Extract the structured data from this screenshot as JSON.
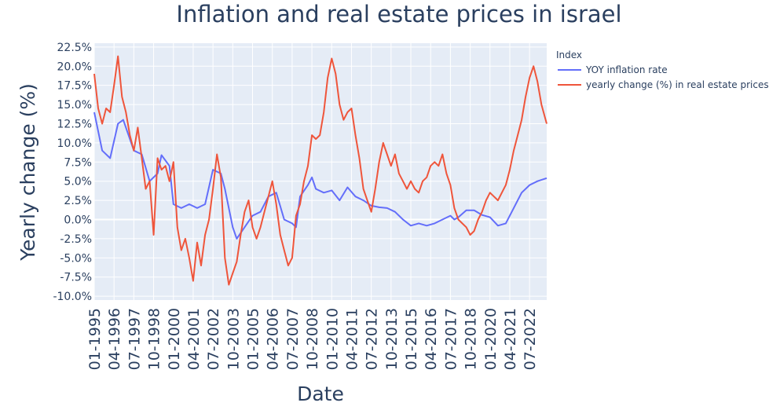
{
  "chart_data": {
    "type": "line",
    "title": "Inflation and real estate prices in israel",
    "xlabel": "Date",
    "ylabel": "Yearly change (%)",
    "ylim": [
      -10.5,
      23.0
    ],
    "y_ticks": [
      -10,
      -7.5,
      -5,
      -2.5,
      0,
      2.5,
      5,
      7.5,
      10,
      12.5,
      15,
      17.5,
      20,
      22.5
    ],
    "y_tick_labels": [
      "-10.0%",
      "-7.5%",
      "-5.0%",
      "-2.5%",
      "0.0%",
      "2.5%",
      "5.0%",
      "7.5%",
      "10.0%",
      "12.5%",
      "15.0%",
      "17.5%",
      "20.0%",
      "22.5%"
    ],
    "x_ticks": [
      "01-1995",
      "04-1996",
      "07-1997",
      "10-1998",
      "01-2000",
      "04-2001",
      "07-2002",
      "10-2003",
      "01-2005",
      "04-2006",
      "07-2007",
      "10-2008",
      "01-2010",
      "04-2011",
      "07-2012",
      "10-2013",
      "01-2015",
      "04-2016",
      "07-2017",
      "10-2018",
      "01-2020",
      "04-2021",
      "07-2022"
    ],
    "x_range": [
      "01-1995",
      "08-2023"
    ],
    "grid": true,
    "legend": {
      "title": "Index",
      "placement": "top-right outside"
    },
    "series": [
      {
        "name": "YOY inflation rate",
        "color": "#636efa",
        "points": [
          [
            "01-1995",
            14.0
          ],
          [
            "07-1995",
            9.0
          ],
          [
            "01-1996",
            8.0
          ],
          [
            "07-1996",
            12.5
          ],
          [
            "11-1996",
            13.0
          ],
          [
            "07-1997",
            9.0
          ],
          [
            "01-1998",
            8.5
          ],
          [
            "07-1998",
            5.0
          ],
          [
            "01-1999",
            6.0
          ],
          [
            "04-1999",
            8.4
          ],
          [
            "10-1999",
            7.0
          ],
          [
            "01-2000",
            2.0
          ],
          [
            "07-2000",
            1.5
          ],
          [
            "01-2001",
            2.0
          ],
          [
            "07-2001",
            1.5
          ],
          [
            "01-2002",
            2.0
          ],
          [
            "07-2002",
            6.5
          ],
          [
            "01-2003",
            6.0
          ],
          [
            "04-2003",
            4.0
          ],
          [
            "10-2003",
            -1.0
          ],
          [
            "01-2004",
            -2.5
          ],
          [
            "07-2004",
            -1.0
          ],
          [
            "01-2005",
            0.5
          ],
          [
            "07-2005",
            1.0
          ],
          [
            "01-2006",
            3.0
          ],
          [
            "07-2006",
            3.5
          ],
          [
            "01-2007",
            0.0
          ],
          [
            "07-2007",
            -0.5
          ],
          [
            "10-2007",
            -1.0
          ],
          [
            "01-2008",
            3.0
          ],
          [
            "07-2008",
            4.5
          ],
          [
            "10-2008",
            5.5
          ],
          [
            "01-2009",
            4.0
          ],
          [
            "07-2009",
            3.5
          ],
          [
            "01-2010",
            3.8
          ],
          [
            "07-2010",
            2.5
          ],
          [
            "01-2011",
            4.2
          ],
          [
            "07-2011",
            3.0
          ],
          [
            "01-2012",
            2.5
          ],
          [
            "07-2012",
            1.8
          ],
          [
            "01-2013",
            1.6
          ],
          [
            "07-2013",
            1.5
          ],
          [
            "01-2014",
            1.0
          ],
          [
            "07-2014",
            0.0
          ],
          [
            "01-2015",
            -0.8
          ],
          [
            "07-2015",
            -0.5
          ],
          [
            "01-2016",
            -0.8
          ],
          [
            "07-2016",
            -0.5
          ],
          [
            "01-2017",
            0.0
          ],
          [
            "07-2017",
            0.5
          ],
          [
            "10-2017",
            0.0
          ],
          [
            "01-2018",
            0.3
          ],
          [
            "07-2018",
            1.2
          ],
          [
            "01-2019",
            1.2
          ],
          [
            "07-2019",
            0.6
          ],
          [
            "01-2020",
            0.3
          ],
          [
            "07-2020",
            -0.8
          ],
          [
            "01-2021",
            -0.5
          ],
          [
            "07-2021",
            1.5
          ],
          [
            "01-2022",
            3.5
          ],
          [
            "07-2022",
            4.5
          ],
          [
            "01-2023",
            5.0
          ],
          [
            "08-2023",
            5.4
          ]
        ]
      },
      {
        "name": "yearly change (%) in real estate prices",
        "color": "#ef553b",
        "points": [
          [
            "01-1995",
            19.0
          ],
          [
            "04-1995",
            14.5
          ],
          [
            "07-1995",
            12.5
          ],
          [
            "10-1995",
            14.5
          ],
          [
            "01-1996",
            14.0
          ],
          [
            "04-1996",
            17.5
          ],
          [
            "07-1996",
            21.3
          ],
          [
            "10-1996",
            16.0
          ],
          [
            "01-1997",
            14.0
          ],
          [
            "04-1997",
            11.0
          ],
          [
            "07-1997",
            9.0
          ],
          [
            "10-1997",
            12.0
          ],
          [
            "01-1998",
            8.0
          ],
          [
            "04-1998",
            4.0
          ],
          [
            "07-1998",
            5.0
          ],
          [
            "10-1998",
            -2.0
          ],
          [
            "01-1999",
            8.0
          ],
          [
            "04-1999",
            6.5
          ],
          [
            "07-1999",
            7.0
          ],
          [
            "10-1999",
            5.0
          ],
          [
            "01-2000",
            7.5
          ],
          [
            "04-2000",
            -1.0
          ],
          [
            "07-2000",
            -4.0
          ],
          [
            "10-2000",
            -2.5
          ],
          [
            "01-2001",
            -5.0
          ],
          [
            "04-2001",
            -8.0
          ],
          [
            "07-2001",
            -3.0
          ],
          [
            "10-2001",
            -6.0
          ],
          [
            "01-2002",
            -2.0
          ],
          [
            "04-2002",
            0.0
          ],
          [
            "07-2002",
            4.0
          ],
          [
            "10-2002",
            8.5
          ],
          [
            "01-2003",
            5.5
          ],
          [
            "04-2003",
            -5.0
          ],
          [
            "07-2003",
            -8.5
          ],
          [
            "10-2003",
            -7.0
          ],
          [
            "01-2004",
            -5.5
          ],
          [
            "04-2004",
            -2.0
          ],
          [
            "07-2004",
            1.0
          ],
          [
            "10-2004",
            2.5
          ],
          [
            "01-2005",
            -1.0
          ],
          [
            "04-2005",
            -2.5
          ],
          [
            "07-2005",
            -1.0
          ],
          [
            "10-2005",
            1.0
          ],
          [
            "01-2006",
            3.0
          ],
          [
            "04-2006",
            5.0
          ],
          [
            "07-2006",
            2.0
          ],
          [
            "10-2006",
            -2.0
          ],
          [
            "01-2007",
            -4.0
          ],
          [
            "04-2007",
            -6.0
          ],
          [
            "07-2007",
            -5.0
          ],
          [
            "10-2007",
            0.5
          ],
          [
            "01-2008",
            2.0
          ],
          [
            "04-2008",
            5.0
          ],
          [
            "07-2008",
            7.0
          ],
          [
            "10-2008",
            11.0
          ],
          [
            "01-2009",
            10.5
          ],
          [
            "04-2009",
            11.0
          ],
          [
            "07-2009",
            14.0
          ],
          [
            "10-2009",
            18.5
          ],
          [
            "01-2010",
            21.0
          ],
          [
            "04-2010",
            19.0
          ],
          [
            "07-2010",
            15.0
          ],
          [
            "10-2010",
            13.0
          ],
          [
            "01-2011",
            14.0
          ],
          [
            "04-2011",
            14.5
          ],
          [
            "07-2011",
            11.0
          ],
          [
            "10-2011",
            8.0
          ],
          [
            "01-2012",
            4.0
          ],
          [
            "04-2012",
            2.5
          ],
          [
            "07-2012",
            1.0
          ],
          [
            "10-2012",
            4.0
          ],
          [
            "01-2013",
            7.5
          ],
          [
            "04-2013",
            10.0
          ],
          [
            "07-2013",
            8.5
          ],
          [
            "10-2013",
            7.0
          ],
          [
            "01-2014",
            8.5
          ],
          [
            "04-2014",
            6.0
          ],
          [
            "07-2014",
            5.0
          ],
          [
            "10-2014",
            4.0
          ],
          [
            "01-2015",
            5.0
          ],
          [
            "04-2015",
            4.0
          ],
          [
            "07-2015",
            3.5
          ],
          [
            "10-2015",
            5.0
          ],
          [
            "01-2016",
            5.5
          ],
          [
            "04-2016",
            7.0
          ],
          [
            "07-2016",
            7.5
          ],
          [
            "10-2016",
            7.0
          ],
          [
            "01-2017",
            8.5
          ],
          [
            "04-2017",
            6.0
          ],
          [
            "07-2017",
            4.5
          ],
          [
            "10-2017",
            1.5
          ],
          [
            "01-2018",
            0.0
          ],
          [
            "04-2018",
            -0.5
          ],
          [
            "07-2018",
            -1.0
          ],
          [
            "10-2018",
            -2.0
          ],
          [
            "01-2019",
            -1.5
          ],
          [
            "04-2019",
            0.0
          ],
          [
            "07-2019",
            1.0
          ],
          [
            "10-2019",
            2.5
          ],
          [
            "01-2020",
            3.5
          ],
          [
            "04-2020",
            3.0
          ],
          [
            "07-2020",
            2.5
          ],
          [
            "10-2020",
            3.5
          ],
          [
            "01-2021",
            4.5
          ],
          [
            "04-2021",
            6.5
          ],
          [
            "07-2021",
            9.0
          ],
          [
            "10-2021",
            11.0
          ],
          [
            "01-2022",
            13.0
          ],
          [
            "04-2022",
            16.0
          ],
          [
            "07-2022",
            18.5
          ],
          [
            "10-2022",
            20.0
          ],
          [
            "01-2023",
            18.0
          ],
          [
            "04-2023",
            15.0
          ],
          [
            "08-2023",
            12.5
          ]
        ]
      }
    ]
  }
}
